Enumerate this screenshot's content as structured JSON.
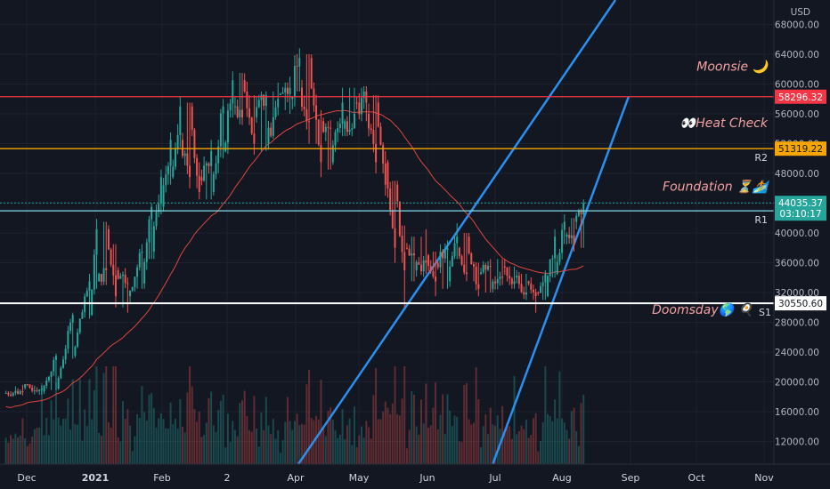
{
  "chart_data": {
    "type": "candlestick",
    "currency": "USD",
    "y_axis": {
      "ticks": [
        "68000.00",
        "64000.00",
        "60000.00",
        "56000.00",
        "52000.00",
        "48000.00",
        "44000.00",
        "40000.00",
        "36000.00",
        "32000.00",
        "28000.00",
        "24000.00",
        "20000.00",
        "16000.00",
        "12000.00"
      ],
      "ylim": [
        10000,
        70000
      ]
    },
    "x_axis": {
      "labels": [
        "Dec",
        "2021",
        "Feb",
        "2",
        "Apr",
        "May",
        "Jun",
        "Jul",
        "Aug",
        "Sep",
        "Oct",
        "Nov"
      ]
    },
    "price_series": {
      "name": "",
      "anchors": [
        {
          "d": 0,
          "o": 18500,
          "h": 19400,
          "l": 18000,
          "c": 19200
        },
        {
          "d": 8,
          "o": 19200,
          "h": 19600,
          "l": 18200,
          "c": 18700
        },
        {
          "d": 16,
          "o": 18700,
          "h": 19500,
          "l": 18300,
          "c": 19100
        },
        {
          "d": 22,
          "o": 19100,
          "h": 23800,
          "l": 18900,
          "c": 23500
        },
        {
          "d": 29,
          "o": 23500,
          "h": 29300,
          "l": 23100,
          "c": 29000
        },
        {
          "d": 36,
          "o": 29000,
          "h": 34500,
          "l": 28500,
          "c": 33500
        },
        {
          "d": 39,
          "o": 33500,
          "h": 41900,
          "l": 32500,
          "c": 40500
        },
        {
          "d": 43,
          "o": 40500,
          "h": 41500,
          "l": 33000,
          "c": 35000
        },
        {
          "d": 47,
          "o": 35000,
          "h": 38500,
          "l": 30000,
          "c": 31500
        },
        {
          "d": 52,
          "o": 31500,
          "h": 34000,
          "l": 29300,
          "c": 33200
        },
        {
          "d": 58,
          "o": 33200,
          "h": 38500,
          "l": 32500,
          "c": 37500
        },
        {
          "d": 62,
          "o": 37500,
          "h": 44000,
          "l": 36500,
          "c": 43500
        },
        {
          "d": 66,
          "o": 43500,
          "h": 48500,
          "l": 42500,
          "c": 47500
        },
        {
          "d": 70,
          "o": 47500,
          "h": 53500,
          "l": 46500,
          "c": 52500
        },
        {
          "d": 74,
          "o": 52500,
          "h": 58300,
          "l": 51500,
          "c": 57000
        },
        {
          "d": 78,
          "o": 57000,
          "h": 57500,
          "l": 46000,
          "c": 47500
        },
        {
          "d": 82,
          "o": 47500,
          "h": 49500,
          "l": 44500,
          "c": 45500
        },
        {
          "d": 87,
          "o": 45500,
          "h": 52500,
          "l": 44500,
          "c": 51000
        },
        {
          "d": 92,
          "o": 51000,
          "h": 58000,
          "l": 50000,
          "c": 57000
        },
        {
          "d": 96,
          "o": 57000,
          "h": 61700,
          "l": 55500,
          "c": 60500
        },
        {
          "d": 100,
          "o": 60500,
          "h": 61500,
          "l": 54500,
          "c": 55500
        },
        {
          "d": 105,
          "o": 55500,
          "h": 58500,
          "l": 50500,
          "c": 52000
        },
        {
          "d": 110,
          "o": 52000,
          "h": 59000,
          "l": 51000,
          "c": 58500
        },
        {
          "d": 115,
          "o": 58500,
          "h": 60200,
          "l": 56500,
          "c": 58000
        },
        {
          "d": 120,
          "o": 58000,
          "h": 61000,
          "l": 56000,
          "c": 59500
        },
        {
          "d": 124,
          "o": 59500,
          "h": 64800,
          "l": 59000,
          "c": 63500
        },
        {
          "d": 128,
          "o": 63500,
          "h": 64000,
          "l": 52000,
          "c": 55000
        },
        {
          "d": 133,
          "o": 55000,
          "h": 56500,
          "l": 47500,
          "c": 49500
        },
        {
          "d": 137,
          "o": 49500,
          "h": 55000,
          "l": 48500,
          "c": 54000
        },
        {
          "d": 142,
          "o": 54000,
          "h": 59500,
          "l": 53000,
          "c": 57500
        },
        {
          "d": 147,
          "o": 57500,
          "h": 59500,
          "l": 54500,
          "c": 56000
        },
        {
          "d": 152,
          "o": 56000,
          "h": 59700,
          "l": 55000,
          "c": 57500
        },
        {
          "d": 156,
          "o": 57500,
          "h": 58500,
          "l": 48000,
          "c": 49500
        },
        {
          "d": 160,
          "o": 49500,
          "h": 51000,
          "l": 45000,
          "c": 46500
        },
        {
          "d": 164,
          "o": 46500,
          "h": 47000,
          "l": 36000,
          "c": 38000
        },
        {
          "d": 168,
          "o": 38000,
          "h": 41000,
          "l": 30000,
          "c": 35000
        },
        {
          "d": 172,
          "o": 35000,
          "h": 39500,
          "l": 33500,
          "c": 37000
        },
        {
          "d": 177,
          "o": 37000,
          "h": 40500,
          "l": 34500,
          "c": 36000
        },
        {
          "d": 181,
          "o": 36000,
          "h": 37500,
          "l": 31500,
          "c": 33500
        },
        {
          "d": 186,
          "o": 33500,
          "h": 39000,
          "l": 32500,
          "c": 38000
        },
        {
          "d": 190,
          "o": 38000,
          "h": 41300,
          "l": 36500,
          "c": 39500
        },
        {
          "d": 194,
          "o": 39500,
          "h": 40000,
          "l": 33500,
          "c": 34500
        },
        {
          "d": 199,
          "o": 34500,
          "h": 36000,
          "l": 31500,
          "c": 32500
        },
        {
          "d": 204,
          "o": 32500,
          "h": 36500,
          "l": 32000,
          "c": 35500
        },
        {
          "d": 209,
          "o": 35500,
          "h": 36500,
          "l": 33000,
          "c": 34000
        },
        {
          "d": 214,
          "o": 34000,
          "h": 35500,
          "l": 32500,
          "c": 33500
        },
        {
          "d": 219,
          "o": 33500,
          "h": 34500,
          "l": 31000,
          "c": 32000
        },
        {
          "d": 223,
          "o": 32000,
          "h": 32500,
          "l": 29300,
          "c": 31500
        },
        {
          "d": 227,
          "o": 31500,
          "h": 35000,
          "l": 31000,
          "c": 34500
        },
        {
          "d": 231,
          "o": 34500,
          "h": 40500,
          "l": 34000,
          "c": 39500
        },
        {
          "d": 235,
          "o": 39500,
          "h": 42500,
          "l": 38500,
          "c": 41500
        },
        {
          "d": 239,
          "o": 41500,
          "h": 42000,
          "l": 37500,
          "c": 38500
        },
        {
          "d": 243,
          "o": 38500,
          "h": 44500,
          "l": 38000,
          "c": 44000
        }
      ]
    },
    "moving_average": {
      "color": "#e0443e"
    },
    "levels": [
      {
        "name": "resistance-58296",
        "value": 58296.32,
        "label": "58296.32",
        "color": "#f23645",
        "tag_text_color": "#ffffff",
        "zone_label": "",
        "annotation": "Moonsie 🌙"
      },
      {
        "name": "r2",
        "value": 51319.22,
        "label": "51319.22",
        "color": "#f7a600",
        "tag_text_color": "#131722",
        "zone_label": "R2",
        "annotation": "👀Heat Check"
      },
      {
        "name": "r1",
        "value": 42967.48,
        "label": "42967.48",
        "color": "#80deea",
        "tag_text_color": "#131722",
        "zone_label": "R1",
        "annotation": "Foundation ⏳🏄"
      },
      {
        "name": "s1",
        "value": 30550.6,
        "label": "30550.60",
        "color": "#ffffff",
        "tag_text_color": "#131722",
        "zone_label": "S1",
        "annotation": "Doomsday🌎 🍳"
      }
    ],
    "last_price": {
      "value": 44035.37,
      "label": "44035.37",
      "countdown": "03:10:17",
      "color": "#26a69a"
    },
    "channel": {
      "color": "#2b8ff0",
      "upper": [
        {
          "d": 169,
          "v": 30300
        },
        {
          "d": 196,
          "v": 42967.48
        }
      ],
      "lower": [
        {
          "d": 205,
          "v": 9000
        },
        {
          "d": 229,
          "v": 29800
        }
      ]
    }
  }
}
